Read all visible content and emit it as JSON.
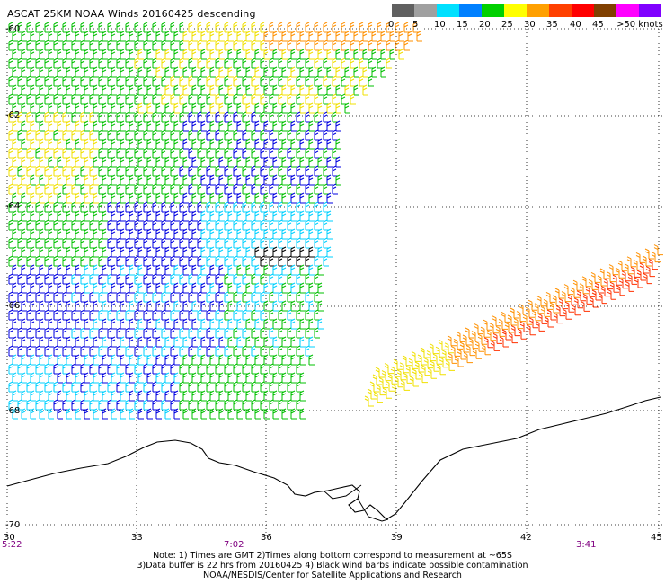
{
  "title": "ASCAT 25KM NOAA Winds 20160425 descending",
  "legend": {
    "labels": [
      "0",
      "5",
      "10",
      "15",
      "20",
      "25",
      "30",
      "35",
      "40",
      "45",
      ">50 knots"
    ],
    "colors": [
      "#606060",
      "#a0a0a0",
      "#00e0ff",
      "#0080ff",
      "#00d000",
      "#ffff00",
      "#ffa000",
      "#ff4000",
      "#ff0000",
      "#804000",
      "#ff00ff",
      "#8000ff"
    ]
  },
  "axes": {
    "lon_ticks": [
      "30",
      "33",
      "36",
      "39",
      "42",
      "45"
    ],
    "lat_ticks": [
      "-60",
      "-62",
      "-64",
      "-66",
      "-68",
      "-70"
    ]
  },
  "times": [
    "5:22",
    "7:02",
    "3:41"
  ],
  "notes": [
    "Note: 1) Times are GMT 2)Times along bottom correspond to measurement at ~65S",
    "3)Data buffer is 22 hrs from 20160425 4) Black wind barbs indicate possible contamination",
    "NOAA/NESDIS/Center for Satellite Applications and Research"
  ],
  "styles": {
    "coast_color": "#000000",
    "grid_color": "#000000",
    "time_color": "#800080",
    "barb_colors": {
      "blue": "#0000e0",
      "cyan": "#00d0ff",
      "green": "#00c000",
      "yellow": "#f0e000",
      "orange": "#ff9000",
      "red": "#ff3000",
      "darkred": "#e00000",
      "black": "#000000"
    }
  }
}
